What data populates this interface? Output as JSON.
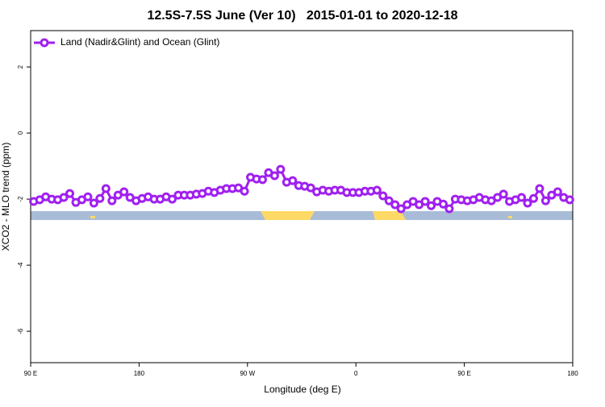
{
  "chart_data": {
    "type": "line",
    "title": "12.5S-7.5S June (Ver 10)   2015-01-01 to 2020-12-18",
    "x_label": "Longitude (deg E)",
    "y_label": "XCO2 - MLO trend (ppm)",
    "xlim": [
      90,
      540
    ],
    "ylim": [
      -6.95,
      3.1
    ],
    "xticks": [
      {
        "value": 90,
        "label": "90 E"
      },
      {
        "value": 180,
        "label": "180"
      },
      {
        "value": 270,
        "label": "90 W"
      },
      {
        "value": 360,
        "label": "0"
      },
      {
        "value": 450,
        "label": "90 E"
      },
      {
        "value": 540,
        "label": "180"
      }
    ],
    "yticks": [
      -6,
      -4,
      -2,
      0,
      2
    ],
    "legend": "top-left",
    "x": [
      92.5,
      97.5,
      102.5,
      107.5,
      112.5,
      117.5,
      122.5,
      127.5,
      132.5,
      137.5,
      142.5,
      147.5,
      152.5,
      157.5,
      162.5,
      167.5,
      172.5,
      177.5,
      182.5,
      187.5,
      192.5,
      197.5,
      202.5,
      207.5,
      212.5,
      217.5,
      222.5,
      227.5,
      232.5,
      237.5,
      242.5,
      247.5,
      252.5,
      257.5,
      262.5,
      267.5,
      272.5,
      277.5,
      282.5,
      287.5,
      292.5,
      297.5,
      302.5,
      307.5,
      312.5,
      317.5,
      322.5,
      327.5,
      332.5,
      337.5,
      342.5,
      347.5,
      352.5,
      357.5,
      362.5,
      367.5,
      372.5,
      377.5,
      382.5,
      387.5,
      392.5,
      397.5,
      402.5,
      407.5,
      412.5,
      417.5,
      422.5,
      427.5,
      432.5,
      437.5,
      442.5,
      447.5,
      452.5,
      457.5,
      462.5,
      467.5,
      472.5,
      477.5,
      482.5,
      487.5,
      492.5,
      497.5,
      502.5,
      507.5,
      512.5,
      517.5,
      522.5,
      527.5,
      532.5,
      537.5
    ],
    "series": [
      {
        "name": "Land (Nadir&Glint) and Ocean (Glint)",
        "color": "#a020f0",
        "values": [
          -2.07,
          -2.02,
          -1.93,
          -2.0,
          -2.02,
          -1.95,
          -1.83,
          -2.1,
          -2.02,
          -1.93,
          -2.12,
          -1.98,
          -1.68,
          -2.05,
          -1.88,
          -1.78,
          -1.95,
          -2.05,
          -1.98,
          -1.93,
          -2.0,
          -2.0,
          -1.93,
          -2.0,
          -1.88,
          -1.88,
          -1.88,
          -1.85,
          -1.83,
          -1.76,
          -1.8,
          -1.73,
          -1.68,
          -1.68,
          -1.66,
          -1.76,
          -1.34,
          -1.39,
          -1.41,
          -1.2,
          -1.29,
          -1.1,
          -1.49,
          -1.44,
          -1.59,
          -1.61,
          -1.66,
          -1.78,
          -1.73,
          -1.76,
          -1.73,
          -1.73,
          -1.8,
          -1.8,
          -1.8,
          -1.76,
          -1.76,
          -1.73,
          -1.9,
          -2.05,
          -2.17,
          -2.29,
          -2.17,
          -2.07,
          -2.17,
          -2.07,
          -2.2,
          -2.07,
          -2.15,
          -2.29,
          -2.0,
          -2.02,
          -2.05,
          -2.02,
          -1.95,
          -2.02,
          -2.05,
          -1.95,
          -1.85,
          -2.07,
          -2.02,
          -1.95,
          -2.12,
          -1.98,
          -1.68,
          -2.05,
          -1.88,
          -1.78,
          -1.95,
          -2.02
        ]
      }
    ]
  }
}
